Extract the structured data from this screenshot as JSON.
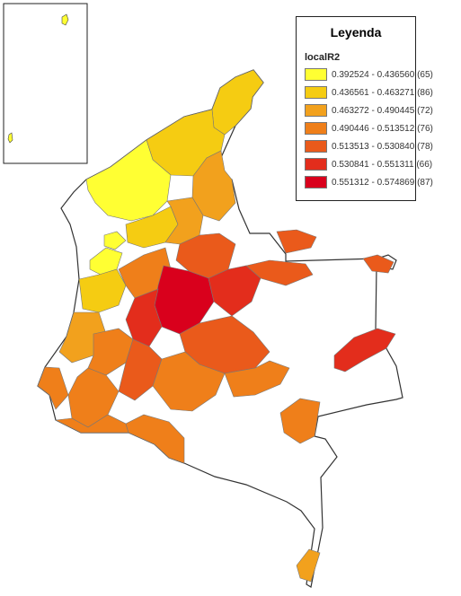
{
  "legend": {
    "title": "Leyenda",
    "field": "localR2",
    "classes": [
      {
        "label": "0.392524 - 0.436560 (65)",
        "color": "#ffff33"
      },
      {
        "label": "0.436561 - 0.463271 (86)",
        "color": "#f5cc12"
      },
      {
        "label": "0.463272 - 0.490445 (72)",
        "color": "#f2a11d"
      },
      {
        "label": "0.490446 - 0.513512 (76)",
        "color": "#ef7f1a"
      },
      {
        "label": "0.513513 - 0.530840 (78)",
        "color": "#ea5a1b"
      },
      {
        "label": "0.530841 - 0.551311 (66)",
        "color": "#e32d1c"
      },
      {
        "label": "0.551312 - 0.574869 (87)",
        "color": "#d9001c"
      }
    ]
  },
  "colors": {
    "no_data": "#ffffff",
    "outline": "#333333",
    "subdivision": "#7f7f7f"
  }
}
